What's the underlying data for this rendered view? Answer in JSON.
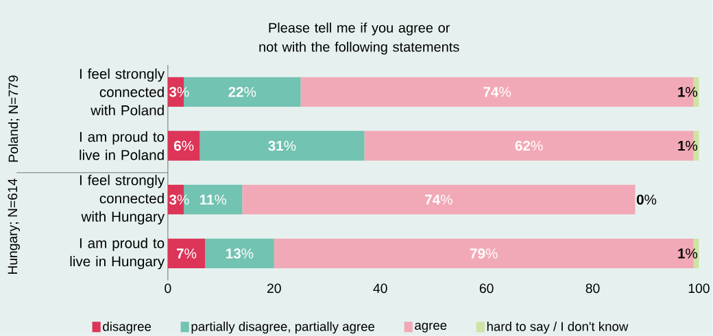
{
  "chart_data": {
    "type": "bar",
    "orientation": "horizontal",
    "stacked": true,
    "title": "Please tell me if you agree or not with the following statements",
    "categories": [
      "I feel strongly connected with Poland",
      "I am proud to live in Poland",
      "I feel strongly connected with Hungary",
      "I am proud to live in Hungary"
    ],
    "series": [
      {
        "name": "disagree",
        "color": "#dc3558",
        "values": [
          3,
          6,
          3,
          7
        ],
        "value_labels": [
          "**3**%",
          "**6**%",
          "**3**%",
          "**7**%"
        ]
      },
      {
        "name": "partially disagree, partially agree",
        "color": "#72c3b1",
        "values": [
          22,
          31,
          11,
          13
        ],
        "value_labels": [
          "**22**%",
          "**31**%",
          "**11**%",
          "**13**%"
        ]
      },
      {
        "name": "agree",
        "color": "#f2a9b7",
        "values": [
          74,
          62,
          74,
          79
        ],
        "value_labels": [
          "**74**%",
          "**62**%",
          "**74**%",
          "**79**%"
        ]
      },
      {
        "name": "hard to say / I don't know",
        "color": "#cfe3a3",
        "values": [
          1,
          1,
          0,
          1
        ],
        "value_labels": [
          "**1**%",
          "**1**%",
          "**0**%",
          "**1**%"
        ]
      }
    ],
    "xlim": [
      0,
      100
    ],
    "xticks": [
      0,
      20,
      40,
      60,
      80,
      100
    ],
    "annotations": [
      "Poland; N=779",
      "Hungary; N=614"
    ],
    "grid": false,
    "legend": "bottom"
  }
}
